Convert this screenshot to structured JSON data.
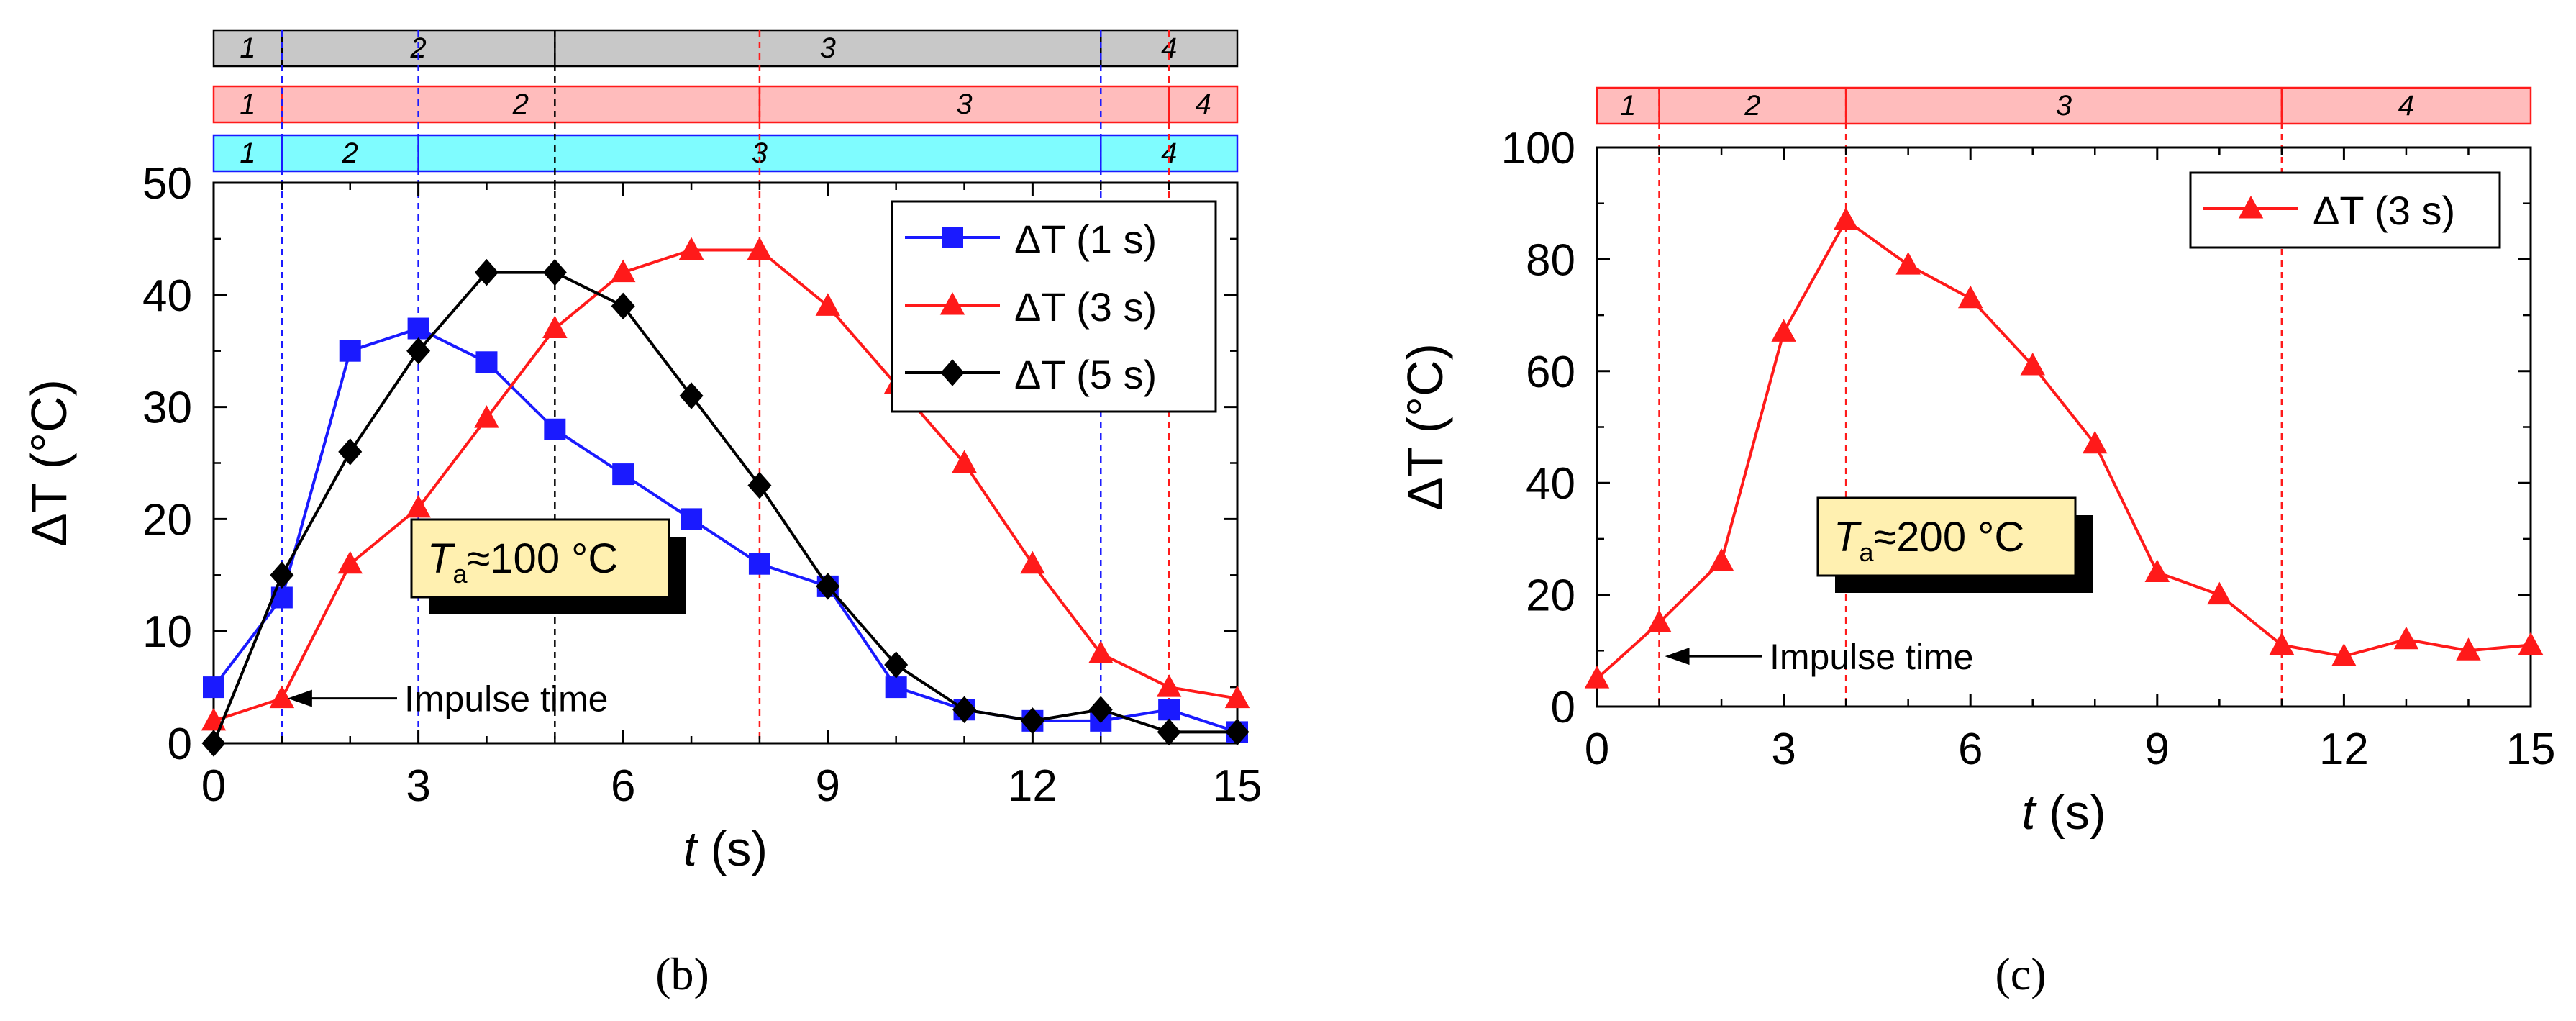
{
  "colors": {
    "blue": "#1a1aff",
    "red": "#ff1a1a",
    "black": "#000000",
    "bar_gray": "#c8c8c8",
    "bar_red": "#ffbcbc",
    "bar_cyan": "#7ffcff",
    "label_box": "#fff0b0"
  },
  "chart_data": [
    {
      "id": "b",
      "type": "line",
      "panel_label": "(b)",
      "xlabel_italic": "t",
      "xlabel_unit": "(s)",
      "ylabel": "ΔT  (°C)",
      "xlim": [
        0,
        15
      ],
      "ylim": [
        0,
        50
      ],
      "xticks": [
        0,
        3,
        6,
        9,
        12,
        15
      ],
      "yticks": [
        0,
        10,
        20,
        30,
        40,
        50
      ],
      "legend_position": "top-right",
      "temperature_label": {
        "prefix": "T",
        "subscript": "a",
        "text": "≈100 °C"
      },
      "annotation": {
        "text": "Impulse time",
        "x": 1,
        "y": 4
      },
      "series": [
        {
          "name": "ΔT (1 s)",
          "color": "#1a1aff",
          "marker": "square",
          "x": [
            0,
            1,
            2,
            3,
            4,
            5,
            6,
            7,
            8,
            9,
            10,
            11,
            12,
            13,
            14,
            15
          ],
          "values": [
            5,
            13,
            35,
            37,
            34,
            28,
            24,
            20,
            16,
            14,
            5,
            3,
            2,
            2,
            3,
            1
          ]
        },
        {
          "name": "ΔT (3 s)",
          "color": "#ff1a1a",
          "marker": "triangle",
          "x": [
            0,
            1,
            2,
            3,
            4,
            5,
            6,
            7,
            8,
            9,
            10,
            11,
            12,
            13,
            14,
            15
          ],
          "values": [
            2,
            4,
            16,
            21,
            29,
            37,
            42,
            44,
            44,
            39,
            32,
            25,
            16,
            8,
            5,
            4
          ]
        },
        {
          "name": "ΔT (5 s)",
          "color": "#000000",
          "marker": "diamond",
          "x": [
            0,
            1,
            2,
            3,
            4,
            5,
            6,
            7,
            8,
            9,
            10,
            11,
            12,
            13,
            14,
            15
          ],
          "values": [
            0,
            15,
            26,
            35,
            42,
            42,
            39,
            31,
            23,
            14,
            7,
            3,
            2,
            3,
            1,
            1
          ]
        }
      ],
      "phase_bars": [
        {
          "color": "#c8c8c8",
          "stroke": "#000000",
          "boundaries": [
            1,
            5,
            13
          ],
          "labels": [
            "1",
            "2",
            "3",
            "4"
          ]
        },
        {
          "color": "#ffbcbc",
          "stroke": "#ff1a1a",
          "boundaries": [
            1,
            8,
            14
          ],
          "labels": [
            "1",
            "2",
            "3",
            "4"
          ]
        },
        {
          "color": "#7ffcff",
          "stroke": "#1a1aff",
          "boundaries": [
            1,
            3,
            13
          ],
          "labels": [
            "1",
            "2",
            "3",
            "4"
          ]
        }
      ],
      "dashed_lines": [
        {
          "x": 1,
          "color": "#ff1a1a"
        },
        {
          "x": 1,
          "color": "#1a1aff"
        },
        {
          "x": 3,
          "color": "#1a1aff"
        },
        {
          "x": 5,
          "color": "#000000"
        },
        {
          "x": 8,
          "color": "#ff1a1a"
        },
        {
          "x": 13,
          "color": "#1a1aff"
        },
        {
          "x": 14,
          "color": "#ff1a1a"
        }
      ]
    },
    {
      "id": "c",
      "type": "line",
      "panel_label": "(c)",
      "xlabel_italic": "t",
      "xlabel_unit": "(s)",
      "ylabel": "ΔT  (°C)",
      "xlim": [
        0,
        15
      ],
      "ylim": [
        0,
        100
      ],
      "xticks": [
        0,
        3,
        6,
        9,
        12,
        15
      ],
      "yticks": [
        0,
        20,
        40,
        60,
        80,
        100
      ],
      "legend_position": "top-right",
      "temperature_label": {
        "prefix": "T",
        "subscript": "a",
        "text": "≈200 °C"
      },
      "annotation": {
        "text": "Impulse time",
        "x": 1,
        "y": 9
      },
      "series": [
        {
          "name": "ΔT (3 s)",
          "color": "#ff1a1a",
          "marker": "triangle",
          "x": [
            0,
            1,
            2,
            3,
            4,
            5,
            6,
            7,
            8,
            9,
            10,
            11,
            12,
            13,
            14,
            15
          ],
          "values": [
            5,
            15,
            26,
            67,
            87,
            79,
            73,
            61,
            47,
            24,
            20,
            11,
            9,
            12,
            10,
            11
          ]
        }
      ],
      "phase_bars": [
        {
          "color": "#ffbcbc",
          "stroke": "#ff1a1a",
          "boundaries": [
            1,
            4,
            11
          ],
          "labels": [
            "1",
            "2",
            "3",
            "4"
          ]
        }
      ],
      "dashed_lines": [
        {
          "x": 1,
          "color": "#ff1a1a"
        },
        {
          "x": 4,
          "color": "#ff1a1a"
        },
        {
          "x": 11,
          "color": "#ff1a1a"
        }
      ]
    }
  ]
}
